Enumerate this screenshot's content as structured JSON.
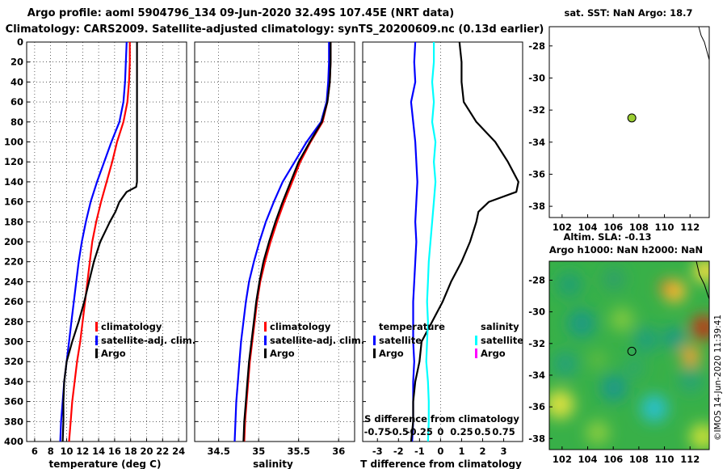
{
  "header": {
    "line1": "Argo profile: aoml 5904796_134 09-Jun-2020 32.49S 107.45E (NRT data)",
    "line2": "Climatology: CARS2009. Satellite-adjusted climatology: synTS_20200609.nc (0.13d earlier)"
  },
  "colors": {
    "climatology": "#ff0000",
    "satellite": "#0000ff",
    "argo": "#000000",
    "salinity_satellite": "#00ffff",
    "salinity_argo": "#ff00ff"
  },
  "depth_axis": {
    "ticks": [
      "0",
      "20",
      "40",
      "60",
      "80",
      "100",
      "120",
      "140",
      "160",
      "180",
      "200",
      "220",
      "240",
      "260",
      "280",
      "300",
      "320",
      "340",
      "360",
      "380",
      "400"
    ]
  },
  "chart_data": [
    {
      "id": "temperature",
      "type": "line",
      "xlabel": "temperature (deg C)",
      "ylabel": "depth",
      "xlim": [
        5,
        25
      ],
      "ylim": [
        400,
        0
      ],
      "xticks": [
        "6",
        "8",
        "10",
        "12",
        "14",
        "16",
        "18",
        "20",
        "22",
        "24"
      ],
      "grid": true,
      "legend_position": "lower-center",
      "series": [
        {
          "name": "climatology",
          "color": "red",
          "z": [
            0,
            20,
            40,
            60,
            80,
            100,
            120,
            140,
            160,
            180,
            200,
            220,
            240,
            260,
            280,
            300,
            320,
            340,
            360,
            380,
            400
          ],
          "values": [
            17.9,
            17.9,
            17.8,
            17.6,
            17.1,
            16.3,
            15.7,
            15.0,
            14.3,
            13.7,
            13.2,
            12.9,
            12.6,
            12.3,
            12.0,
            11.7,
            11.3,
            11.0,
            10.7,
            10.5,
            10.3
          ]
        },
        {
          "name": "satellite-adj. clim.",
          "color": "blue",
          "z": [
            0,
            20,
            40,
            60,
            80,
            100,
            120,
            140,
            160,
            180,
            200,
            220,
            240,
            260,
            280,
            300,
            320,
            340,
            360,
            380,
            400
          ],
          "values": [
            17.5,
            17.4,
            17.3,
            17.1,
            16.6,
            15.6,
            14.7,
            13.8,
            13.0,
            12.4,
            11.9,
            11.5,
            11.2,
            10.9,
            10.6,
            10.3,
            10.0,
            9.7,
            9.5,
            9.3,
            9.2
          ]
        },
        {
          "name": "Argo",
          "color": "black",
          "z": [
            0,
            20,
            40,
            60,
            80,
            100,
            120,
            140,
            145,
            150,
            160,
            170,
            180,
            200,
            220,
            240,
            260,
            280,
            300,
            320,
            340,
            360,
            380,
            400
          ],
          "values": [
            18.8,
            18.8,
            18.8,
            18.8,
            18.8,
            18.8,
            18.8,
            18.8,
            18.7,
            17.5,
            16.6,
            16.1,
            15.4,
            14.2,
            13.4,
            12.8,
            12.2,
            11.5,
            10.7,
            10.0,
            9.7,
            9.6,
            9.6,
            9.5
          ]
        }
      ],
      "legend": [
        "climatology",
        "satellite-adj. clim.",
        "Argo"
      ]
    },
    {
      "id": "salinity",
      "type": "line",
      "xlabel": "salinity",
      "ylabel": "depth",
      "xlim": [
        34.2,
        36.2
      ],
      "ylim": [
        400,
        0
      ],
      "xticks": [
        "34.5",
        "35",
        "35.5",
        "36"
      ],
      "grid": true,
      "legend_position": "lower-right",
      "series": [
        {
          "name": "climatology",
          "color": "red",
          "z": [
            0,
            20,
            40,
            60,
            80,
            100,
            120,
            140,
            160,
            180,
            200,
            220,
            240,
            260,
            280,
            300,
            320,
            340,
            360,
            380,
            400
          ],
          "values": [
            35.9,
            35.9,
            35.89,
            35.86,
            35.8,
            35.65,
            35.52,
            35.42,
            35.32,
            35.23,
            35.15,
            35.08,
            35.02,
            34.98,
            34.95,
            34.92,
            34.89,
            34.87,
            34.85,
            34.83,
            34.82
          ]
        },
        {
          "name": "satellite-adj. clim.",
          "color": "blue",
          "z": [
            0,
            20,
            40,
            60,
            80,
            100,
            120,
            140,
            160,
            180,
            200,
            220,
            240,
            260,
            280,
            300,
            320,
            340,
            360,
            380,
            400
          ],
          "values": [
            35.88,
            35.88,
            35.87,
            35.85,
            35.78,
            35.6,
            35.45,
            35.3,
            35.19,
            35.09,
            35.01,
            34.94,
            34.88,
            34.84,
            34.81,
            34.78,
            34.76,
            34.74,
            34.72,
            34.71,
            34.7
          ]
        },
        {
          "name": "Argo",
          "color": "black",
          "z": [
            0,
            20,
            40,
            60,
            80,
            100,
            120,
            140,
            160,
            180,
            200,
            220,
            240,
            260,
            280,
            300,
            320,
            340,
            360,
            380,
            400
          ],
          "values": [
            35.9,
            35.9,
            35.89,
            35.86,
            35.79,
            35.64,
            35.5,
            35.4,
            35.3,
            35.21,
            35.13,
            35.06,
            35.01,
            34.97,
            34.94,
            34.91,
            34.88,
            34.86,
            34.84,
            34.82,
            34.81
          ]
        }
      ],
      "legend": [
        "climatology",
        "satellite-adj. clim.",
        "Argo"
      ]
    },
    {
      "id": "difference",
      "type": "line",
      "xlabel": "T difference from climatology",
      "xlabel_top": "S difference from climatology",
      "ylabel": "depth",
      "xlim": [
        -3.7,
        3.9
      ],
      "ylim": [
        400,
        0
      ],
      "xticks": [
        "-3",
        "-2",
        "-1",
        "0",
        "1",
        "2",
        "3"
      ],
      "sticks": [
        "-0.75",
        "-0.5",
        "-0.25",
        "0",
        "0.25",
        "0.5",
        "0.75"
      ],
      "grid": false,
      "legend_position": "lower-center",
      "legend_titles": [
        "temperature",
        "salinity"
      ],
      "series": [
        {
          "name": "T satellite",
          "color": "blue",
          "z": [
            0,
            20,
            40,
            60,
            80,
            100,
            120,
            140,
            160,
            180,
            200,
            220,
            240,
            260,
            280,
            300,
            320,
            340,
            360,
            380,
            400
          ],
          "values": [
            -1.2,
            -1.25,
            -1.2,
            -1.4,
            -1.3,
            -1.2,
            -1.15,
            -1.1,
            -1.15,
            -1.2,
            -1.15,
            -1.2,
            -1.25,
            -1.3,
            -1.3,
            -1.3,
            -1.25,
            -1.3,
            -1.3,
            -1.3,
            -1.35
          ]
        },
        {
          "name": "T Argo",
          "color": "black",
          "z": [
            0,
            20,
            40,
            60,
            80,
            100,
            120,
            140,
            150,
            160,
            170,
            180,
            200,
            220,
            240,
            260,
            280,
            300,
            320,
            340,
            360,
            380,
            400
          ],
          "values": [
            0.9,
            1.0,
            1.0,
            1.1,
            1.7,
            2.6,
            3.2,
            3.7,
            3.6,
            2.3,
            1.8,
            1.7,
            1.4,
            1.0,
            0.5,
            0.1,
            -0.4,
            -0.9,
            -1.0,
            -1.2,
            -1.3,
            -1.3,
            -1.4
          ]
        },
        {
          "name": "S satellite",
          "color": "cyan",
          "z": [
            0,
            20,
            40,
            60,
            80,
            100,
            120,
            140,
            160,
            180,
            200,
            220,
            240,
            260,
            280,
            300,
            320,
            340,
            360,
            380,
            400
          ],
          "values": [
            -0.08,
            -0.08,
            -0.1,
            -0.08,
            -0.1,
            -0.06,
            -0.08,
            -0.06,
            -0.08,
            -0.1,
            -0.12,
            -0.14,
            -0.15,
            -0.16,
            -0.15,
            -0.16,
            -0.17,
            -0.15,
            -0.14,
            -0.14,
            -0.15
          ]
        }
      ],
      "legend": [
        "satellite",
        "Argo",
        "satellite",
        "Argo"
      ]
    }
  ],
  "sst_map": {
    "title": "sat. SST: NaN Argo: 18.7",
    "xticks": [
      "102",
      "104",
      "106",
      "108",
      "110",
      "112"
    ],
    "yticks": [
      "-28",
      "-30",
      "-32",
      "-34",
      "-36",
      "-38"
    ],
    "marker_lon": 107.45,
    "marker_lat": -32.49
  },
  "sla_map": {
    "title_line1": "Altim. SLA: -0.13",
    "title_line2": "Argo h1000: NaN h2000: NaN",
    "xticks": [
      "102",
      "104",
      "106",
      "108",
      "110",
      "112"
    ],
    "yticks": [
      "-28",
      "-30",
      "-32",
      "-34",
      "-36",
      "-38"
    ],
    "watermark": "©IMOS 14-Jun-2020 11:39:41"
  }
}
